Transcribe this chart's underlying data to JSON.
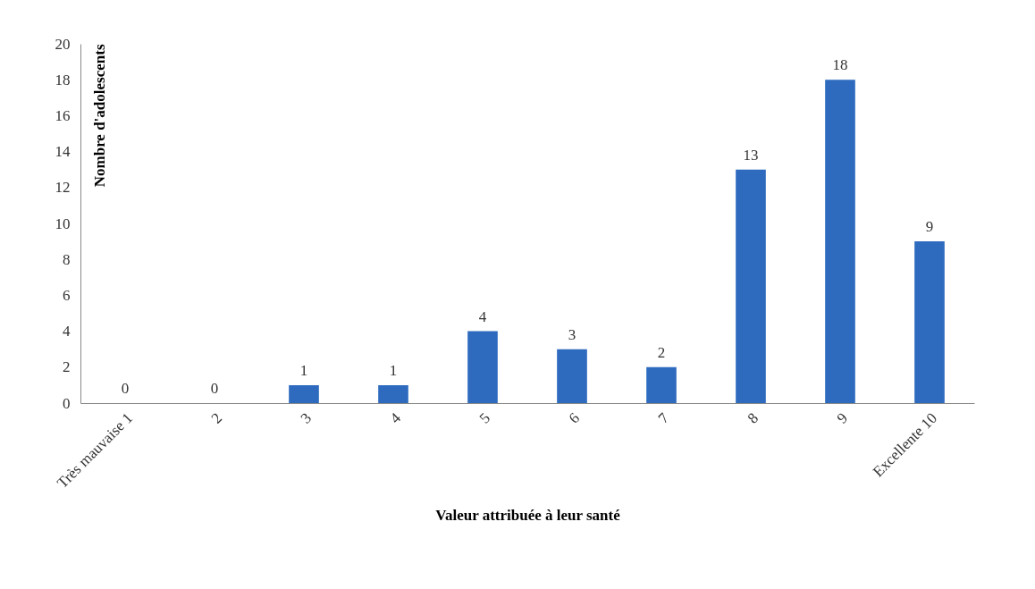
{
  "chart_data": {
    "type": "bar",
    "xlabel": "Valeur attribuée à leur santé",
    "ylabel": "Nombre d'adolescents",
    "categories": [
      "Très mauvaise 1",
      "2",
      "3",
      "4",
      "5",
      "6",
      "7",
      "8",
      "9",
      "Excellente 10"
    ],
    "values": [
      0,
      0,
      1,
      1,
      4,
      3,
      2,
      13,
      18,
      9
    ],
    "color": "#2e6bbf",
    "ylim": [
      0,
      20
    ],
    "yticks": [
      0,
      2,
      4,
      6,
      8,
      10,
      12,
      14,
      16,
      18,
      20
    ],
    "grid": false,
    "data_labels": true
  }
}
